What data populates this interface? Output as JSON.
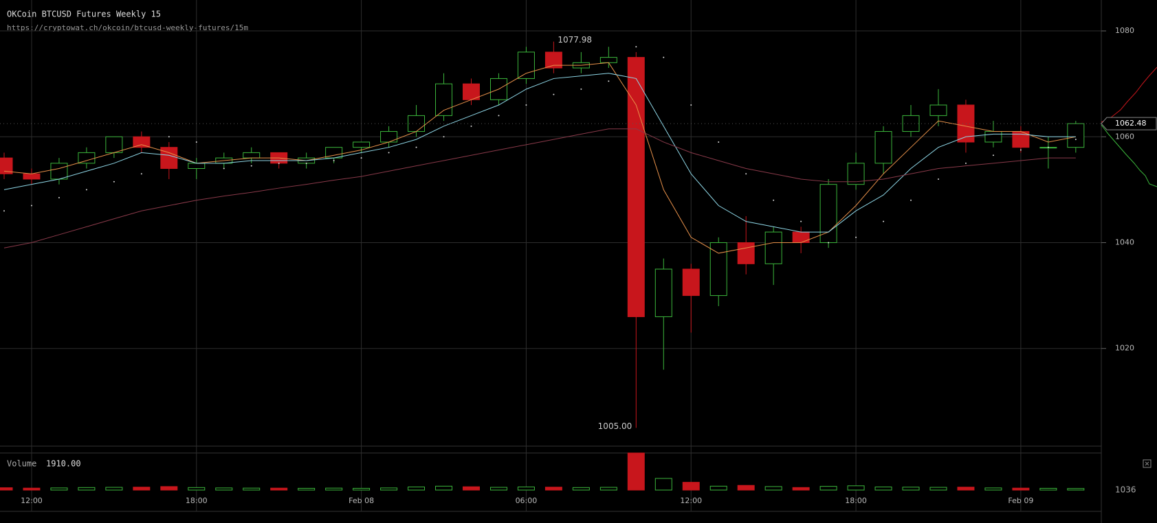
{
  "chart_data": {
    "type": "candlestick",
    "title": "OKCoin BTCUSD Futures Weekly 15",
    "subtitle": "https://cryptowat.ch/okcoin/btcusd-weekly-futures/15m",
    "x": [
      11,
      12,
      13,
      14,
      15,
      16,
      17,
      18,
      19,
      20,
      21,
      22,
      23,
      24,
      25,
      26,
      27,
      28,
      29,
      30,
      31,
      32,
      33,
      34,
      35,
      36,
      37,
      38,
      39,
      40,
      41,
      42,
      43,
      44,
      45,
      46,
      47,
      48,
      49,
      50
    ],
    "open": [
      1056,
      1053,
      1052,
      1055,
      1057,
      1060,
      1058,
      1054,
      1055,
      1056,
      1057,
      1055,
      1056,
      1058,
      1059,
      1061,
      1064,
      1070,
      1067,
      1071,
      1076,
      1073,
      1074,
      1075,
      1026,
      1035,
      1030,
      1040,
      1036,
      1042,
      1040,
      1051,
      1055,
      1061,
      1064,
      1066,
      1059,
      1061,
      1058,
      1058
    ],
    "high": [
      1057,
      1054,
      1056,
      1058,
      1060,
      1061,
      1059,
      1056,
      1057,
      1058,
      1057,
      1057,
      1058,
      1059,
      1062,
      1066,
      1072,
      1071,
      1072,
      1077,
      1077.98,
      1076,
      1077,
      1076,
      1037,
      1036,
      1041,
      1045,
      1043,
      1043,
      1052,
      1057,
      1062,
      1066,
      1069,
      1067,
      1063,
      1062,
      1060,
      1063
    ],
    "low": [
      1052,
      1051,
      1051,
      1054,
      1056,
      1057,
      1052,
      1052,
      1054,
      1055,
      1054,
      1054,
      1055,
      1057,
      1058,
      1060,
      1063,
      1066,
      1066,
      1070,
      1072,
      1072,
      1073,
      1005,
      1016,
      1023,
      1028,
      1034,
      1032,
      1038,
      1039,
      1050,
      1053,
      1060,
      1062,
      1057,
      1058,
      1057,
      1054,
      1057
    ],
    "close": [
      1053,
      1052,
      1055,
      1057,
      1060,
      1058,
      1054,
      1055,
      1056,
      1057,
      1055,
      1056,
      1058,
      1059,
      1061,
      1064,
      1070,
      1067,
      1071,
      1076,
      1073,
      1074,
      1075,
      1026,
      1035,
      1030,
      1040,
      1036,
      1042,
      1040,
      1051,
      1055,
      1061,
      1064,
      1066,
      1059,
      1061,
      1058,
      1058,
      1062.48
    ],
    "up_color": "#3cb83c",
    "down_color": "#c8161c",
    "overlays": [
      {
        "color": "#e8914a",
        "style": "line",
        "values": [
          1053.5,
          1053,
          1054,
          1055.5,
          1057,
          1058.5,
          1057,
          1055,
          1055.5,
          1056,
          1056,
          1055.5,
          1056.5,
          1057.5,
          1059,
          1061,
          1065,
          1067,
          1069,
          1072,
          1073.5,
          1073.5,
          1074,
          1066,
          1050,
          1041,
          1038,
          1039,
          1040,
          1040,
          1042,
          1047,
          1053,
          1058,
          1063,
          1062,
          1061,
          1061,
          1059,
          1060
        ]
      },
      {
        "color": "#8fd8e8",
        "style": "line",
        "values": [
          1050,
          1051,
          1052,
          1053.5,
          1055,
          1057,
          1056.5,
          1055,
          1055,
          1055.5,
          1055.5,
          1055.5,
          1056,
          1057,
          1058,
          1059.5,
          1062,
          1064,
          1066,
          1069,
          1071,
          1071.5,
          1072,
          1071,
          1062,
          1053,
          1047,
          1044,
          1043,
          1042,
          1042,
          1046,
          1049,
          1054,
          1058,
          1060,
          1060.5,
          1060.5,
          1060,
          1060
        ]
      },
      {
        "color": "#8a3a4a",
        "style": "line",
        "values": [
          1039,
          1040,
          1041.5,
          1043,
          1044.5,
          1046,
          1047,
          1048,
          1048.8,
          1049.5,
          1050.3,
          1051,
          1051.8,
          1052.5,
          1053.5,
          1054.5,
          1055.5,
          1056.5,
          1057.5,
          1058.5,
          1059.5,
          1060.5,
          1061.5,
          1061.5,
          1059,
          1057,
          1055.5,
          1054,
          1053,
          1052,
          1051.5,
          1051.5,
          1052,
          1053,
          1054,
          1054.5,
          1055,
          1055.5,
          1056,
          1056
        ]
      },
      {
        "color": "#dddddd",
        "style": "dots",
        "values": [
          1046,
          1047,
          1048.5,
          1050,
          1051.5,
          1053,
          1060,
          1059,
          1054,
          1054.5,
          1055,
          1055,
          1055.5,
          1056,
          1057,
          1058,
          1060,
          1062,
          1064,
          1066,
          1068,
          1069,
          1070.5,
          1077,
          1075,
          1066,
          1059,
          1053,
          1048,
          1044,
          1040,
          1041,
          1044,
          1048,
          1052,
          1055,
          1056.5,
          1057.5,
          1058,
          1059.5
        ]
      }
    ],
    "max_label": "1077.98",
    "min_label": "1005.00",
    "last_label": "1062.48",
    "xlim": [
      10.85,
      50.93
    ],
    "xticks": [
      {
        "value": 12,
        "label": "12:00"
      },
      {
        "value": 18,
        "label": "18:00"
      },
      {
        "value": 24,
        "label": "Feb 08"
      },
      {
        "value": 30,
        "label": "06:00"
      },
      {
        "value": 36,
        "label": "12:00"
      },
      {
        "value": 42,
        "label": "18:00"
      },
      {
        "value": 48,
        "label": "Feb 09"
      }
    ],
    "ylim": [
      1001.55,
      1085.84
    ],
    "yticks": [
      1020,
      1040,
      1060,
      1080
    ],
    "grid": true,
    "volume": {
      "label": "Volume",
      "value_label": "1910.00",
      "corner_label": "1036",
      "ylim": [
        0,
        1910
      ],
      "values": [
        120,
        100,
        110,
        130,
        140,
        150,
        180,
        130,
        110,
        100,
        100,
        90,
        100,
        90,
        110,
        160,
        200,
        170,
        140,
        160,
        150,
        130,
        140,
        1910,
        600,
        400,
        200,
        240,
        180,
        130,
        190,
        220,
        160,
        150,
        140,
        150,
        110,
        100,
        90,
        80
      ]
    }
  }
}
